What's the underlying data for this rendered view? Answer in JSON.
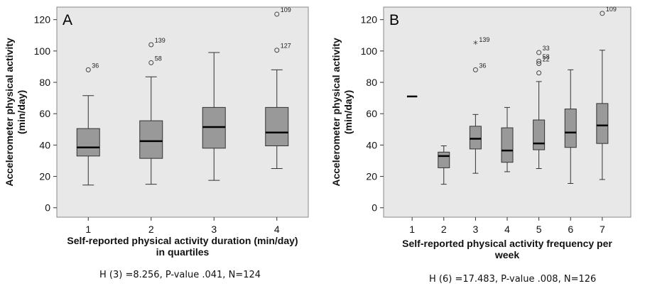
{
  "chart_data": [
    {
      "type": "boxplot",
      "panel_label": "A",
      "ylabel": "Accelerometer physical activity (min/day)",
      "xlabel": "Self-reported physical activity duration (min/day) in quartiles",
      "ylim": [
        -6,
        128
      ],
      "yticks": [
        0,
        20,
        40,
        60,
        80,
        100,
        120
      ],
      "categories": [
        "1",
        "2",
        "3",
        "4"
      ],
      "boxes": [
        {
          "category": "1",
          "whisker_low": 14.5,
          "q1": 33,
          "median": 38.5,
          "q3": 50.5,
          "whisker_high": 71.5,
          "outliers": [
            {
              "value": 88,
              "label": "36",
              "marker": "circle"
            }
          ]
        },
        {
          "category": "2",
          "whisker_low": 15,
          "q1": 31.5,
          "median": 42.5,
          "q3": 55.5,
          "whisker_high": 83.5,
          "outliers": [
            {
              "value": 92.5,
              "label": "58",
              "marker": "circle"
            },
            {
              "value": 104,
              "label": "139",
              "marker": "circle"
            }
          ]
        },
        {
          "category": "3",
          "whisker_low": 17.5,
          "q1": 38,
          "median": 51.5,
          "q3": 64,
          "whisker_high": 99,
          "outliers": []
        },
        {
          "category": "4",
          "whisker_low": 25,
          "q1": 39.5,
          "median": 48,
          "q3": 64,
          "whisker_high": 88,
          "outliers": [
            {
              "value": 100.5,
              "label": "127",
              "marker": "circle"
            },
            {
              "value": 123.5,
              "label": "109",
              "marker": "circle"
            }
          ]
        }
      ],
      "caption": "H (3) =8.256, P-value .041, N=124"
    },
    {
      "type": "boxplot",
      "panel_label": "B",
      "ylabel": "Accelerometer physical activity (min/day)",
      "xlabel": "Self-reported physical activity frequency per week",
      "ylim": [
        -6,
        128
      ],
      "yticks": [
        0,
        20,
        40,
        60,
        80,
        100,
        120
      ],
      "categories": [
        "1",
        "2",
        "3",
        "4",
        "5",
        "6",
        "7"
      ],
      "boxes": [
        {
          "category": "1",
          "whisker_low": 71,
          "q1": 71,
          "median": 71,
          "q3": 71,
          "whisker_high": 71,
          "outliers": []
        },
        {
          "category": "2",
          "whisker_low": 15,
          "q1": 25.5,
          "median": 33,
          "q3": 35.5,
          "whisker_high": 39.5,
          "outliers": []
        },
        {
          "category": "3",
          "whisker_low": 22,
          "q1": 37.5,
          "median": 44,
          "q3": 52,
          "whisker_high": 59.5,
          "outliers": [
            {
              "value": 88,
              "label": "36",
              "marker": "circle"
            },
            {
              "value": 104.5,
              "label": "139",
              "marker": "star"
            }
          ]
        },
        {
          "category": "4",
          "whisker_low": 23,
          "q1": 29,
          "median": 36.5,
          "q3": 51,
          "whisker_high": 64,
          "outliers": []
        },
        {
          "category": "5",
          "whisker_low": 25,
          "q1": 37,
          "median": 41,
          "q3": 56,
          "whisker_high": 80.5,
          "outliers": [
            {
              "value": 86,
              "label": "",
              "marker": "circle"
            },
            {
              "value": 92,
              "label": "22",
              "marker": "circle"
            },
            {
              "value": 93.5,
              "label": "58",
              "marker": "circle"
            },
            {
              "value": 99,
              "label": "33",
              "marker": "circle"
            }
          ]
        },
        {
          "category": "6",
          "whisker_low": 15.5,
          "q1": 38.5,
          "median": 48,
          "q3": 63,
          "whisker_high": 88,
          "outliers": []
        },
        {
          "category": "7",
          "whisker_low": 18,
          "q1": 41,
          "median": 52.5,
          "q3": 66.5,
          "whisker_high": 100.5,
          "outliers": [
            {
              "value": 124,
              "label": "109",
              "marker": "circle"
            }
          ]
        }
      ],
      "caption": "H (6) =17.483, P-value .008, N=126"
    }
  ],
  "colors": {
    "plot_background": "#e8e8e8",
    "box_fill": "#999999",
    "box_stroke": "#333333",
    "median": "#000000",
    "outlier": "#444444"
  }
}
